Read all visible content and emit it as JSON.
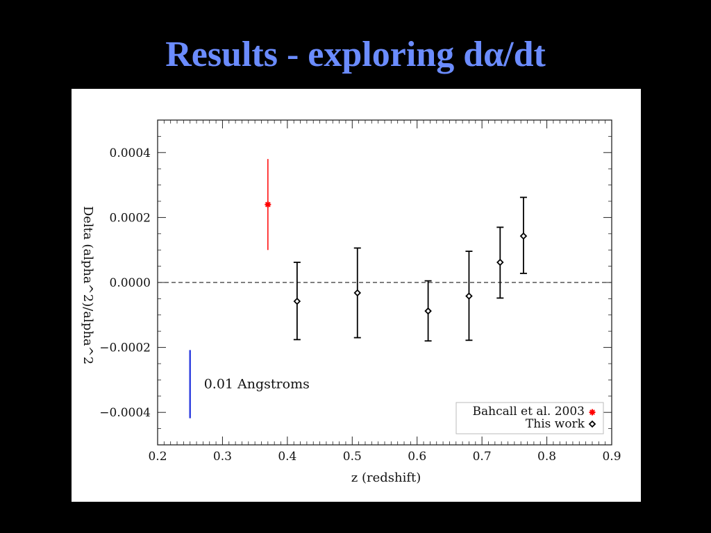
{
  "slide": {
    "title": "Results - exploring dα/dt"
  },
  "chart_data": {
    "type": "scatter",
    "xlabel": "z (redshift)",
    "ylabel": "Delta (alpha^2)/alpha^2",
    "xlim": [
      0.2,
      0.9
    ],
    "ylim": [
      -0.0005,
      0.0005
    ],
    "x_ticks": [
      "0.2",
      "0.3",
      "0.4",
      "0.5",
      "0.6",
      "0.7",
      "0.8",
      "0.9"
    ],
    "y_ticks": [
      "−0.0004",
      "−0.0002",
      "0.0000",
      "0.0002",
      "0.0004"
    ],
    "y_tick_values": [
      -0.0004,
      -0.0002,
      0.0,
      0.0002,
      0.0004
    ],
    "x_tick_values": [
      0.2,
      0.3,
      0.4,
      0.5,
      0.6,
      0.7,
      0.8,
      0.9
    ],
    "grid": false,
    "reference_line": {
      "y": 0.0,
      "style": "dashed"
    },
    "series": [
      {
        "name": "Bahcall et al. 2003",
        "color": "#ff0000",
        "marker": "asterisk",
        "points": [
          {
            "x": 0.37,
            "y": 0.00024,
            "ylow": 0.0001,
            "yhigh": 0.00038
          }
        ]
      },
      {
        "name": "This work",
        "color": "#000000",
        "marker": "diamond",
        "points": [
          {
            "x": 0.415,
            "y": -5.8e-05,
            "ylow": -0.000176,
            "yhigh": 6.2e-05
          },
          {
            "x": 0.508,
            "y": -3.2e-05,
            "ylow": -0.00017,
            "yhigh": 0.000106
          },
          {
            "x": 0.617,
            "y": -8.8e-05,
            "ylow": -0.00018,
            "yhigh": 5e-06
          },
          {
            "x": 0.68,
            "y": -4.2e-05,
            "ylow": -0.000178,
            "yhigh": 9.6e-05
          },
          {
            "x": 0.728,
            "y": 6.2e-05,
            "ylow": -4.8e-05,
            "yhigh": 0.00017
          },
          {
            "x": 0.764,
            "y": 0.000143,
            "ylow": 2.8e-05,
            "yhigh": 0.000262
          }
        ]
      }
    ],
    "scale_bar": {
      "label": "0.01 Angstroms",
      "color": "#3040e0",
      "x": 0.25,
      "y_from": -0.000208,
      "y_to": -0.000418
    },
    "legend": {
      "position": "bottom-right",
      "entries": [
        "Bahcall et al. 2003",
        "This work"
      ]
    }
  }
}
